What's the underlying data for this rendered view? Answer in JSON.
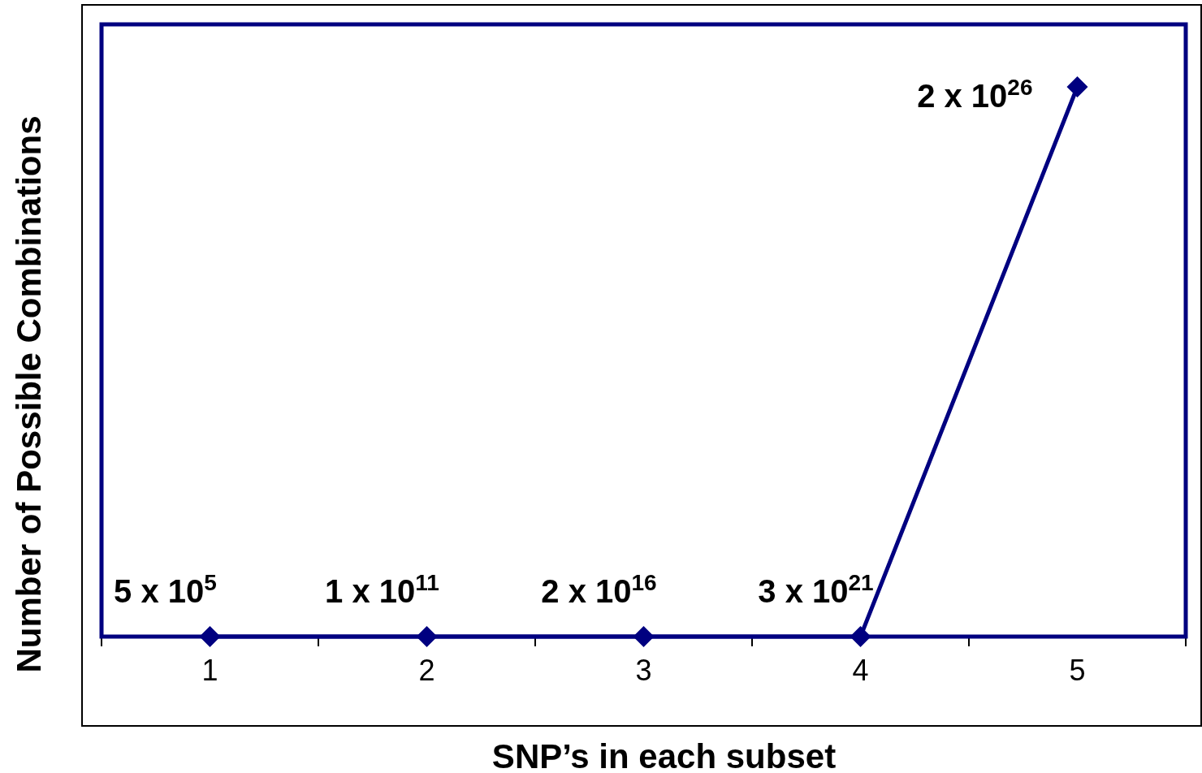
{
  "chart_data": {
    "type": "line",
    "xlabel": "SNP’s in each subset",
    "ylabel": "Number of Possible Combinations",
    "categories": [
      "1",
      "2",
      "3",
      "4",
      "5"
    ],
    "tick_labels": "x",
    "series": [
      {
        "color": "#000080",
        "values": [
          500000.0,
          100000000000.0,
          2e+16,
          3e+21,
          2e+26
        ],
        "value_labels": [
          "5 x 10$^{5}$",
          "1 x 10$^{11}$",
          "2 x 10$^{16}$",
          "3 x 10$^{21}$",
          "2 x 10$^{26}$"
        ]
      }
    ],
    "marker": "diamond",
    "line_style": "solid",
    "legend": false,
    "grid": false
  }
}
